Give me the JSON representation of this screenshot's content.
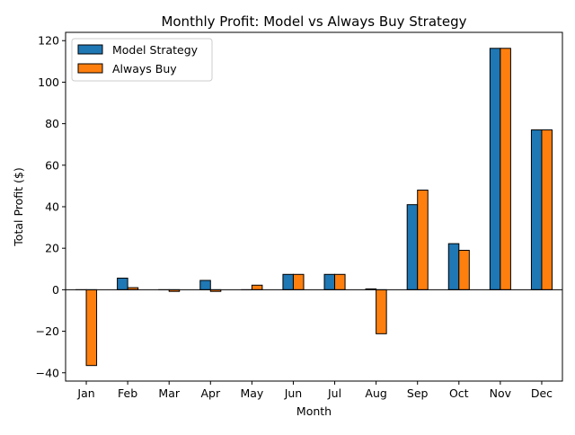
{
  "chart_data": {
    "type": "bar",
    "title": "Monthly Profit: Model vs Always Buy Strategy",
    "xlabel": "Month",
    "ylabel": "Total Profit ($)",
    "categories": [
      "Jan",
      "Feb",
      "Mar",
      "Apr",
      "May",
      "Jun",
      "Jul",
      "Aug",
      "Sep",
      "Oct",
      "Nov",
      "Dec"
    ],
    "series": [
      {
        "name": "Model Strategy",
        "color": "#1f77b4",
        "values": [
          0,
          5.6,
          0,
          4.5,
          0,
          7.4,
          7.4,
          0.4,
          41.0,
          22.2,
          116.3,
          77.0
        ]
      },
      {
        "name": "Always Buy",
        "color": "#ff7f0e",
        "values": [
          -36.5,
          1.0,
          -0.8,
          -0.8,
          2.2,
          7.4,
          7.4,
          -21.2,
          48.0,
          19.0,
          116.3,
          77.0
        ]
      }
    ],
    "ylim": [
      -44,
      124
    ],
    "yticks": [
      -40,
      -20,
      0,
      20,
      40,
      60,
      80,
      100,
      120
    ],
    "ytick_labels": [
      "−40",
      "−20",
      "0",
      "20",
      "40",
      "60",
      "80",
      "100",
      "120"
    ],
    "grid": false,
    "legend": "upper-left",
    "zero_line": true
  }
}
